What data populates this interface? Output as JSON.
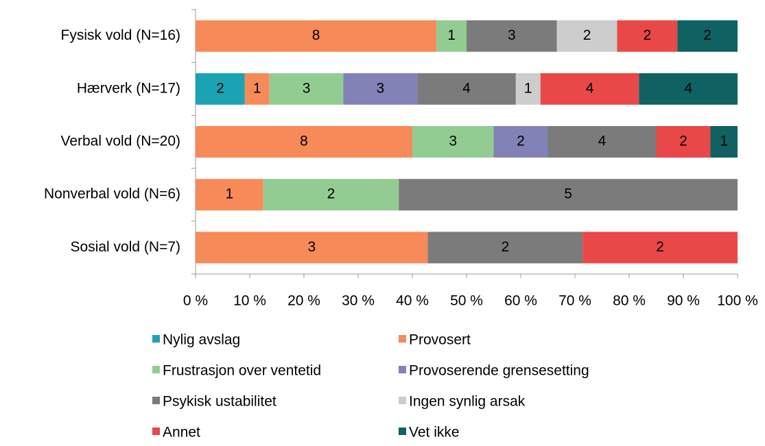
{
  "chart_data": {
    "type": "bar",
    "orientation": "horizontal",
    "stacking": "percent",
    "categories": [
      "Fysisk vold (N=16)",
      "Hærverk (N=17)",
      "Verbal vold (N=20)",
      "Nonverbal vold (N=6)",
      "Sosial vold (N=7)"
    ],
    "series": [
      {
        "name": "Nylig avslag",
        "color": "#1ba3b3",
        "values": [
          null,
          2,
          null,
          null,
          null
        ]
      },
      {
        "name": "Provosert",
        "color": "#f68a58",
        "values": [
          8,
          1,
          8,
          1,
          3
        ]
      },
      {
        "name": "Frustrasjon over ventetid",
        "color": "#93cc93",
        "values": [
          1,
          3,
          3,
          2,
          null
        ]
      },
      {
        "name": "Provoserende grensesetting",
        "color": "#8282b6",
        "values": [
          null,
          3,
          2,
          null,
          null
        ]
      },
      {
        "name": "Psykisk ustabilitet",
        "color": "#7b7b7b",
        "values": [
          3,
          4,
          4,
          5,
          2
        ]
      },
      {
        "name": "Ingen synlig arsak",
        "color": "#cdcdcd",
        "values": [
          2,
          1,
          null,
          null,
          null
        ]
      },
      {
        "name": "Annet",
        "color": "#e84848",
        "values": [
          2,
          4,
          2,
          null,
          2
        ]
      },
      {
        "name": "Vet ikke",
        "color": "#0f6261",
        "values": [
          2,
          4,
          1,
          null,
          null
        ]
      }
    ],
    "xlim": [
      0,
      100
    ],
    "xticks": [
      {
        "value": 0,
        "label": "0 %"
      },
      {
        "value": 10,
        "label": "10 %"
      },
      {
        "value": 20,
        "label": "20 %"
      },
      {
        "value": 30,
        "label": "30 %"
      },
      {
        "value": 40,
        "label": "40 %"
      },
      {
        "value": 50,
        "label": "50 %"
      },
      {
        "value": 60,
        "label": "60 %"
      },
      {
        "value": 70,
        "label": "70 %"
      },
      {
        "value": 80,
        "label": "80 %"
      },
      {
        "value": 90,
        "label": "90 %"
      },
      {
        "value": 100,
        "label": "100 %"
      }
    ],
    "legend": "bottom"
  }
}
